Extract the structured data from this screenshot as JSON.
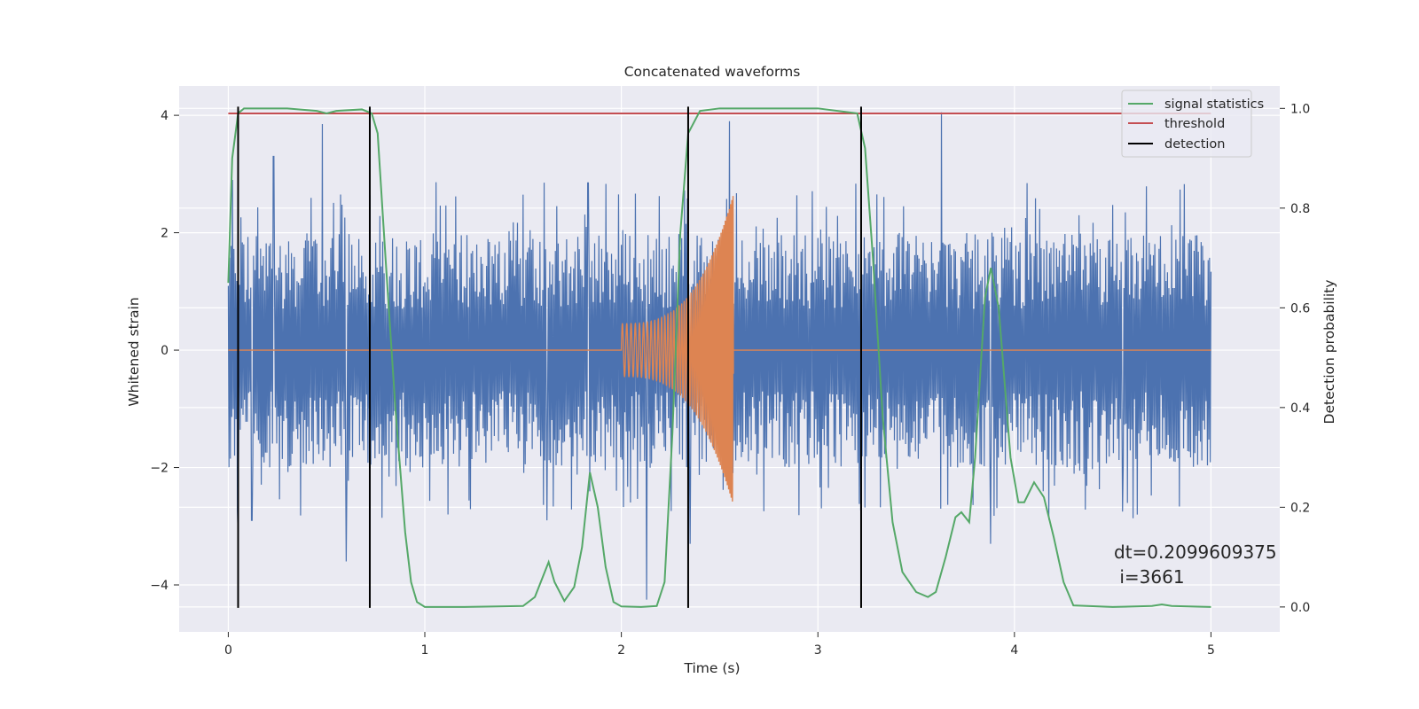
{
  "chart_data": {
    "type": "line",
    "title": "Concatenated waveforms",
    "xlabel": "Time (s)",
    "ylabel": "Whitened strain",
    "y2label": "Detection probability",
    "xlim": [
      -0.25,
      5.35
    ],
    "ylim": [
      -4.8,
      4.5
    ],
    "y2lim": [
      -0.05,
      1.045
    ],
    "xticks": [
      0,
      1,
      2,
      3,
      4,
      5
    ],
    "xtick_labels": [
      "0",
      "1",
      "2",
      "3",
      "4",
      "5"
    ],
    "yticks": [
      -4,
      -2,
      0,
      2,
      4
    ],
    "ytick_labels": [
      "−4",
      "−2",
      "0",
      "2",
      "4"
    ],
    "y2ticks": [
      0.0,
      0.2,
      0.4,
      0.6,
      0.8,
      1.0
    ],
    "y2tick_labels": [
      "0.0",
      "0.2",
      "0.4",
      "0.6",
      "0.8",
      "1.0"
    ],
    "grid": true,
    "legend_position": "top-right",
    "series": [
      {
        "name": "",
        "axis": "left",
        "color": "#4c72b0",
        "kind": "noise",
        "x_range": [
          0,
          5
        ],
        "typical_peak": 2.4,
        "notable_peaks": [
          {
            "x": 0.02,
            "y": 2.9
          },
          {
            "x": 0.05,
            "y": -3.15
          },
          {
            "x": 0.12,
            "y": -2.9
          },
          {
            "x": 0.23,
            "y": 3.3
          },
          {
            "x": 0.48,
            "y": 3.85
          },
          {
            "x": 0.6,
            "y": -3.6
          },
          {
            "x": 1.62,
            "y": -2.9
          },
          {
            "x": 1.83,
            "y": 2.85
          },
          {
            "x": 2.13,
            "y": -4.25
          },
          {
            "x": 2.55,
            "y": 3.9
          },
          {
            "x": 2.35,
            "y": -3.3
          },
          {
            "x": 3.63,
            "y": 4.05
          },
          {
            "x": 3.88,
            "y": -3.3
          },
          {
            "x": 4.55,
            "y": -2.75
          }
        ]
      },
      {
        "name": "",
        "axis": "left",
        "color": "#dd8452",
        "kind": "chirp",
        "x_range": [
          2.0,
          2.57
        ],
        "amplitude_start": 0.45,
        "amplitude_end": 2.65,
        "frequency_start_hz": 45,
        "frequency_end_hz": 160
      },
      {
        "name": "signal statistics",
        "axis": "right",
        "color": "#55a868",
        "x": [
          0.0,
          0.02,
          0.05,
          0.08,
          0.12,
          0.3,
          0.45,
          0.5,
          0.55,
          0.68,
          0.73,
          0.76,
          0.8,
          0.85,
          0.9,
          0.93,
          0.96,
          1.0,
          1.2,
          1.5,
          1.56,
          1.59,
          1.63,
          1.66,
          1.71,
          1.76,
          1.8,
          1.84,
          1.88,
          1.92,
          1.96,
          2.0,
          2.1,
          2.18,
          2.22,
          2.26,
          2.3,
          2.34,
          2.4,
          2.5,
          3.0,
          3.2,
          3.24,
          3.28,
          3.33,
          3.38,
          3.43,
          3.5,
          3.56,
          3.6,
          3.65,
          3.7,
          3.73,
          3.77,
          3.8,
          3.85,
          3.88,
          3.92,
          3.98,
          4.02,
          4.05,
          4.1,
          4.15,
          4.2,
          4.25,
          4.3,
          4.5,
          4.7,
          4.75,
          4.8,
          5.0
        ],
        "y": [
          0.65,
          0.9,
          0.99,
          1.0,
          1.0,
          1.0,
          0.995,
          0.99,
          0.995,
          0.998,
          0.99,
          0.95,
          0.7,
          0.4,
          0.15,
          0.05,
          0.01,
          0.0,
          0.0,
          0.002,
          0.02,
          0.05,
          0.09,
          0.05,
          0.012,
          0.04,
          0.12,
          0.27,
          0.2,
          0.08,
          0.01,
          0.001,
          0.0,
          0.002,
          0.05,
          0.35,
          0.75,
          0.95,
          0.995,
          1.0,
          1.0,
          0.99,
          0.92,
          0.7,
          0.38,
          0.17,
          0.07,
          0.03,
          0.02,
          0.03,
          0.1,
          0.18,
          0.19,
          0.17,
          0.3,
          0.62,
          0.68,
          0.6,
          0.3,
          0.21,
          0.21,
          0.25,
          0.22,
          0.14,
          0.05,
          0.003,
          0.0,
          0.002,
          0.005,
          0.002,
          0.0
        ]
      },
      {
        "name": "threshold",
        "axis": "right",
        "color": "#c44e52",
        "x": [
          0,
          5
        ],
        "y": [
          0.99,
          0.99
        ]
      }
    ],
    "detections": {
      "name": "detection",
      "color": "#000000",
      "x": [
        0.05,
        0.72,
        2.34,
        3.22
      ]
    },
    "annotation": {
      "text_line1": "dt=0.2099609375",
      "text_line2": " i=3661"
    }
  },
  "colors": {
    "axes_background": "#eaeaf2",
    "grid": "#ffffff"
  }
}
